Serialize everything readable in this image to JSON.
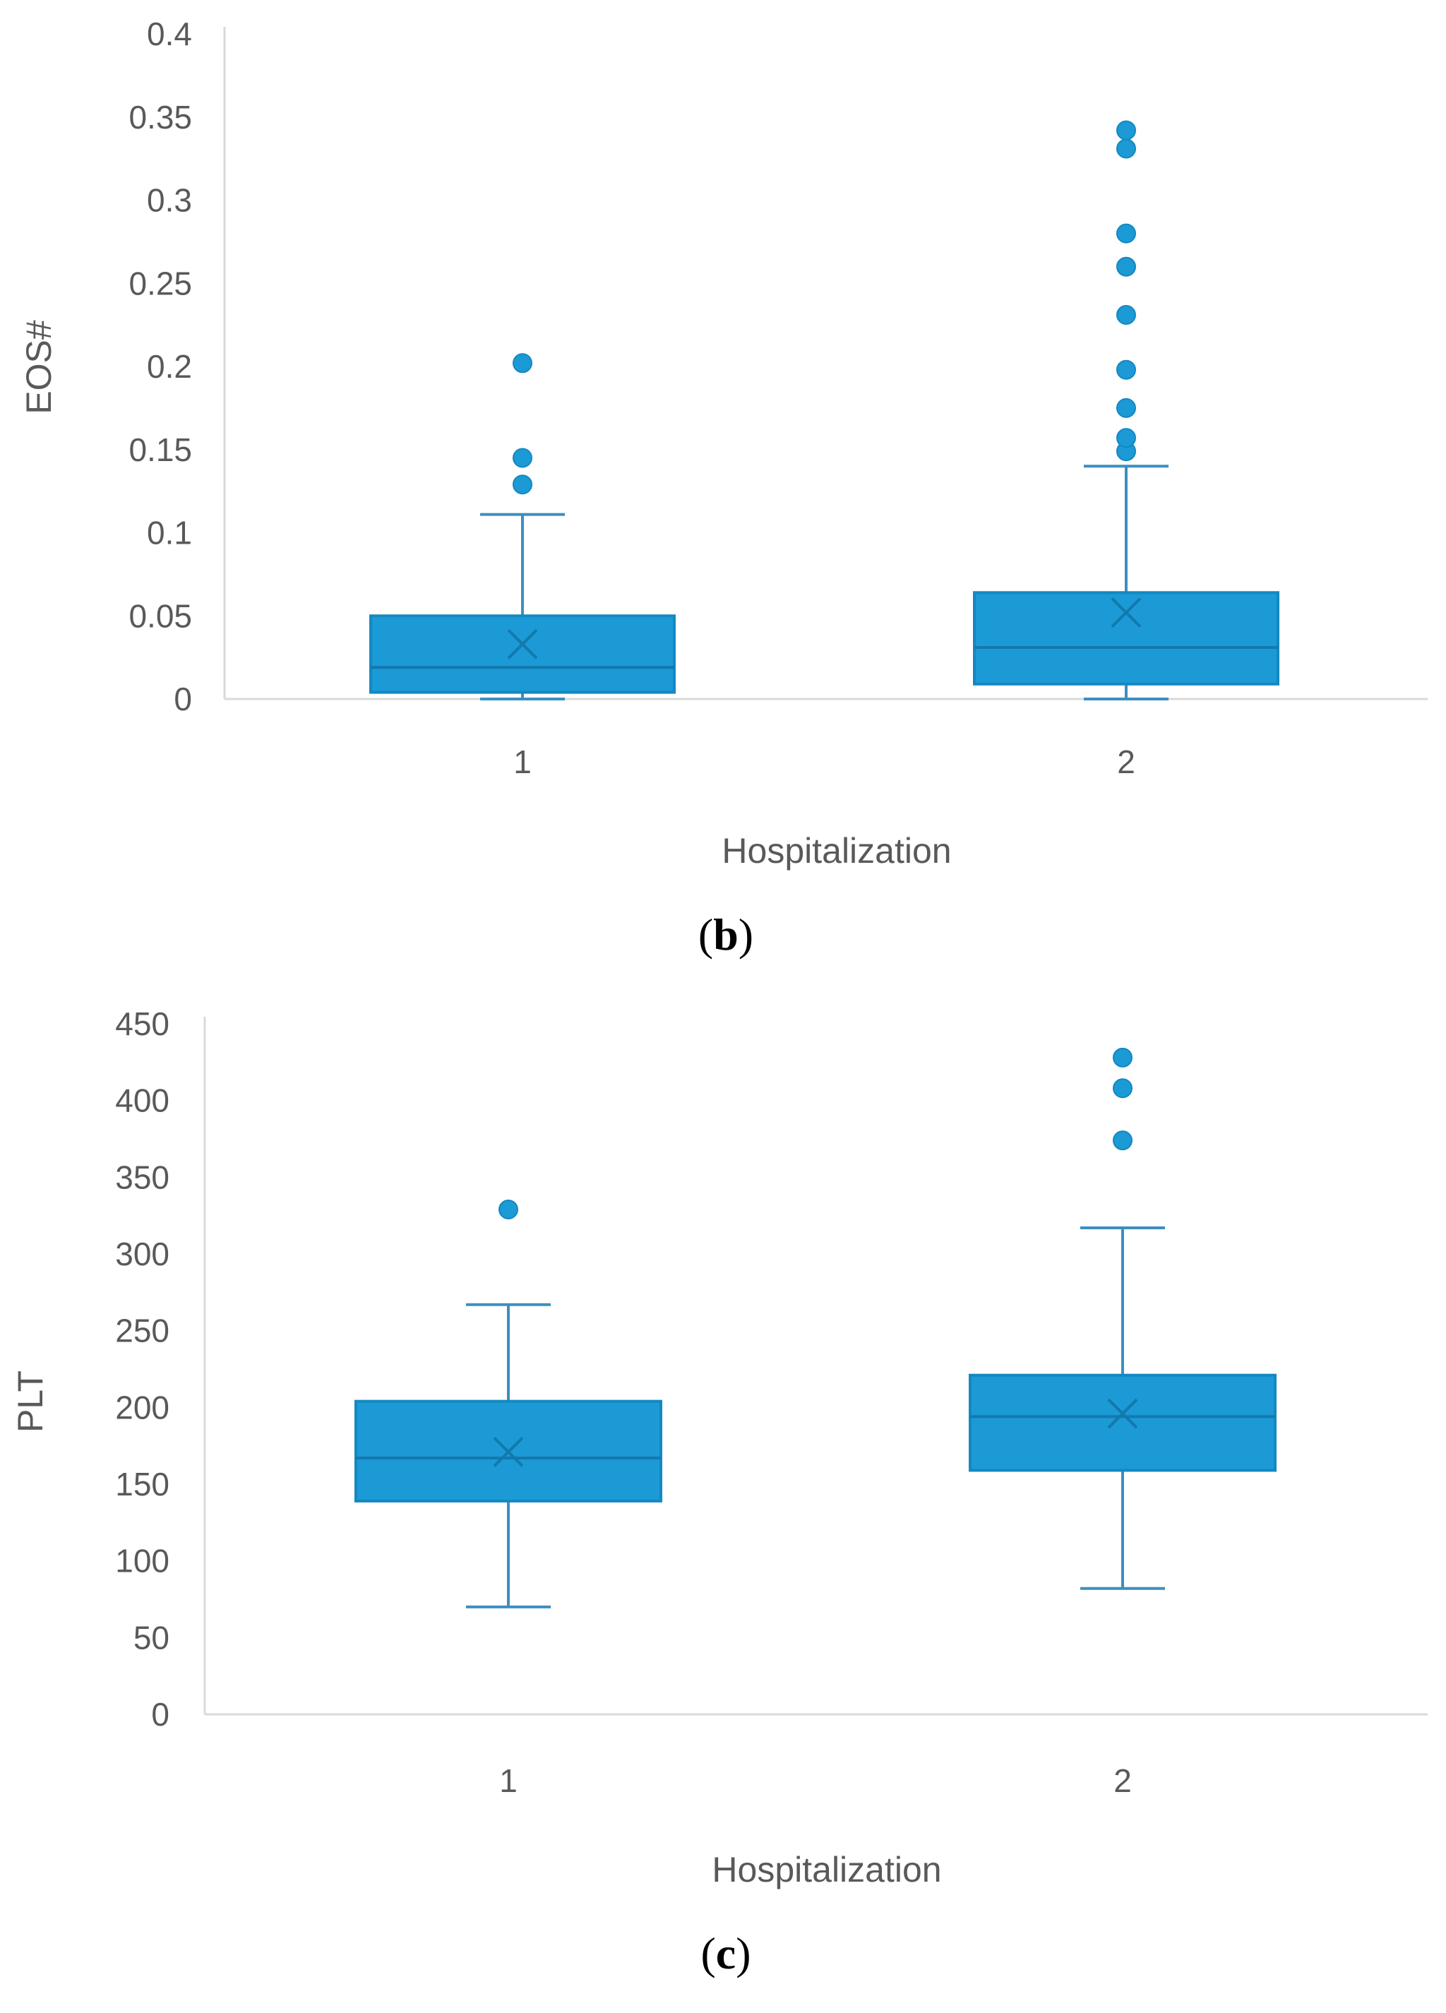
{
  "colors": {
    "box_fill": "#1B9AD6",
    "box_stroke": "#1488C2",
    "whisker": "#3C8FC0",
    "axis": "#D9D9D9",
    "text": "#595959"
  },
  "panels": [
    {
      "open": "(",
      "letter": "b",
      "close": ")"
    },
    {
      "open": "(",
      "letter": "c",
      "close": ")"
    }
  ],
  "chart_data": [
    {
      "type": "box",
      "title": "",
      "xlabel": "Hospitalization",
      "ylabel": "EOS#",
      "categories": [
        "1",
        "2"
      ],
      "ylim": [
        0,
        0.4
      ],
      "yticks": [
        0,
        0.05,
        0.1,
        0.15,
        0.2,
        0.25,
        0.3,
        0.35,
        0.4
      ],
      "ytick_labels": [
        "0",
        "0.05",
        "0.1",
        "0.15",
        "0.2",
        "0.25",
        "0.3",
        "0.35",
        "0.4"
      ],
      "boxes": [
        {
          "category": "1",
          "min": 0.0,
          "q1": 0.004,
          "median": 0.019,
          "q3": 0.05,
          "max": 0.111,
          "mean": 0.033,
          "outliers": [
            0.129,
            0.145,
            0.202
          ]
        },
        {
          "category": "2",
          "min": 0.0,
          "q1": 0.009,
          "median": 0.031,
          "q3": 0.064,
          "max": 0.14,
          "mean": 0.052,
          "outliers": [
            0.149,
            0.157,
            0.175,
            0.198,
            0.231,
            0.26,
            0.28,
            0.331,
            0.342
          ]
        }
      ]
    },
    {
      "type": "box",
      "title": "",
      "xlabel": "Hospitalization",
      "ylabel": "PLT",
      "categories": [
        "1",
        "2"
      ],
      "ylim": [
        0,
        450
      ],
      "yticks": [
        0,
        50,
        100,
        150,
        200,
        250,
        300,
        350,
        400,
        450
      ],
      "ytick_labels": [
        "0",
        "50",
        "100",
        "150",
        "200",
        "250",
        "300",
        "350",
        "400",
        "450"
      ],
      "boxes": [
        {
          "category": "1",
          "min": 70,
          "q1": 139,
          "median": 167,
          "q3": 204,
          "max": 267,
          "mean": 171,
          "outliers": [
            329
          ]
        },
        {
          "category": "2",
          "min": 82,
          "q1": 159,
          "median": 194,
          "q3": 221,
          "max": 317,
          "mean": 196,
          "outliers": [
            374,
            408,
            428
          ]
        }
      ]
    }
  ]
}
